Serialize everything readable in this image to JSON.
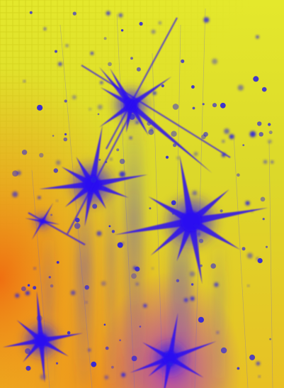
{
  "image": {
    "subject": "abstract-starburst-artwork",
    "colors": {
      "background_top": "#e6ec2a",
      "background_mid": "#d8d42a",
      "warm_glow_left": "#f07a10",
      "warm_glow_bottom": "#f0a020",
      "star_color": "#2a10f0",
      "star_highlight": "#5a40ff",
      "bottom_purple": "#9a20e0",
      "grid_tint": "#c8c000"
    },
    "starbursts": [
      {
        "id": "star-top",
        "size": "medium"
      },
      {
        "id": "star-left",
        "size": "large"
      },
      {
        "id": "star-center",
        "size": "large"
      },
      {
        "id": "star-bottom-left",
        "size": "medium"
      },
      {
        "id": "star-bottom-right",
        "size": "medium"
      },
      {
        "id": "star-small-left",
        "size": "small"
      }
    ]
  }
}
